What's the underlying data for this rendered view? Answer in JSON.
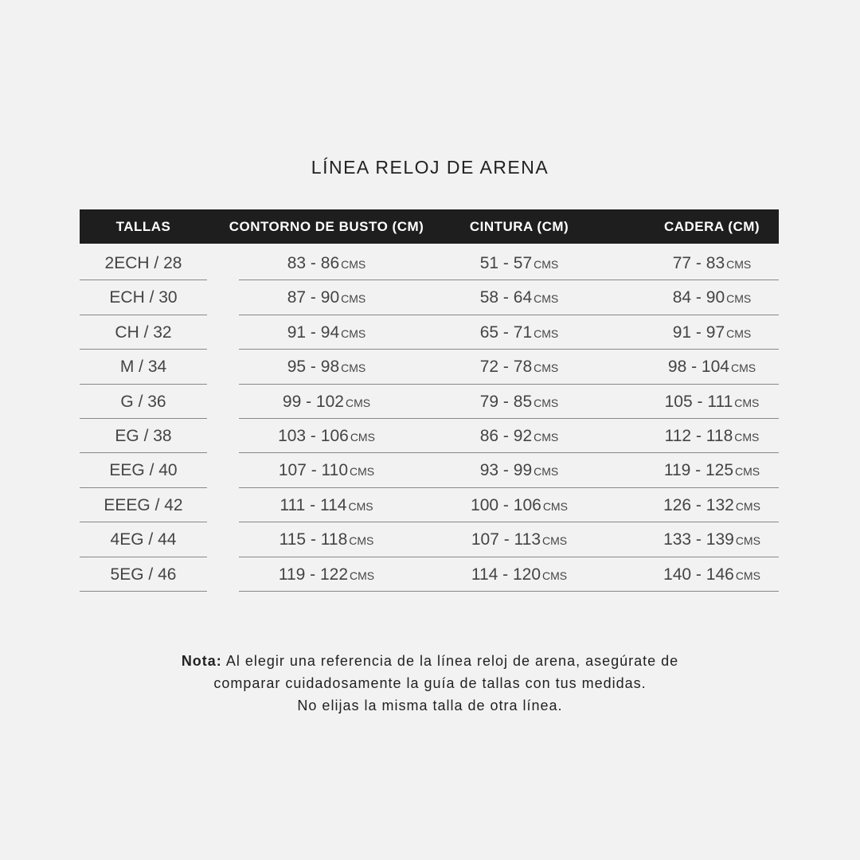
{
  "title": "LÍNEA RELOJ DE ARENA",
  "headers": [
    "TALLAS",
    "CONTORNO DE BUSTO (CM)",
    "CINTURA (CM)",
    "CADERA (CM)"
  ],
  "unit": "CMS",
  "rows": [
    [
      "2ECH / 28",
      "83 - 86",
      "51 - 57",
      "77 - 83"
    ],
    [
      "ECH / 30",
      "87 - 90",
      "58 - 64",
      "84 - 90"
    ],
    [
      "CH / 32",
      "91 - 94",
      "65 - 71",
      "91 - 97"
    ],
    [
      "M / 34",
      "95 - 98",
      "72 - 78",
      "98 - 104"
    ],
    [
      "G / 36",
      "99 - 102",
      "79 - 85",
      "105 - 111"
    ],
    [
      "EG / 38",
      "103 - 106",
      "86 - 92",
      "112 - 118"
    ],
    [
      "EEG / 40",
      "107 - 110",
      "93 - 99",
      "119 - 125"
    ],
    [
      "EEEG / 42",
      "111 - 114",
      "100 - 106",
      "126 - 132"
    ],
    [
      "4EG / 44",
      "115 - 118",
      "107 - 113",
      "133 - 139"
    ],
    [
      "5EG / 46",
      "119 - 122",
      "114 - 120",
      "140 - 146"
    ]
  ],
  "note": {
    "label": "Nota:",
    "line1": "Al elegir una referencia de la línea reloj de arena, asegúrate de",
    "line2": "comparar cuidadosamente la guía de tallas con tus medidas.",
    "line3": "No elijas la misma talla de otra línea."
  }
}
